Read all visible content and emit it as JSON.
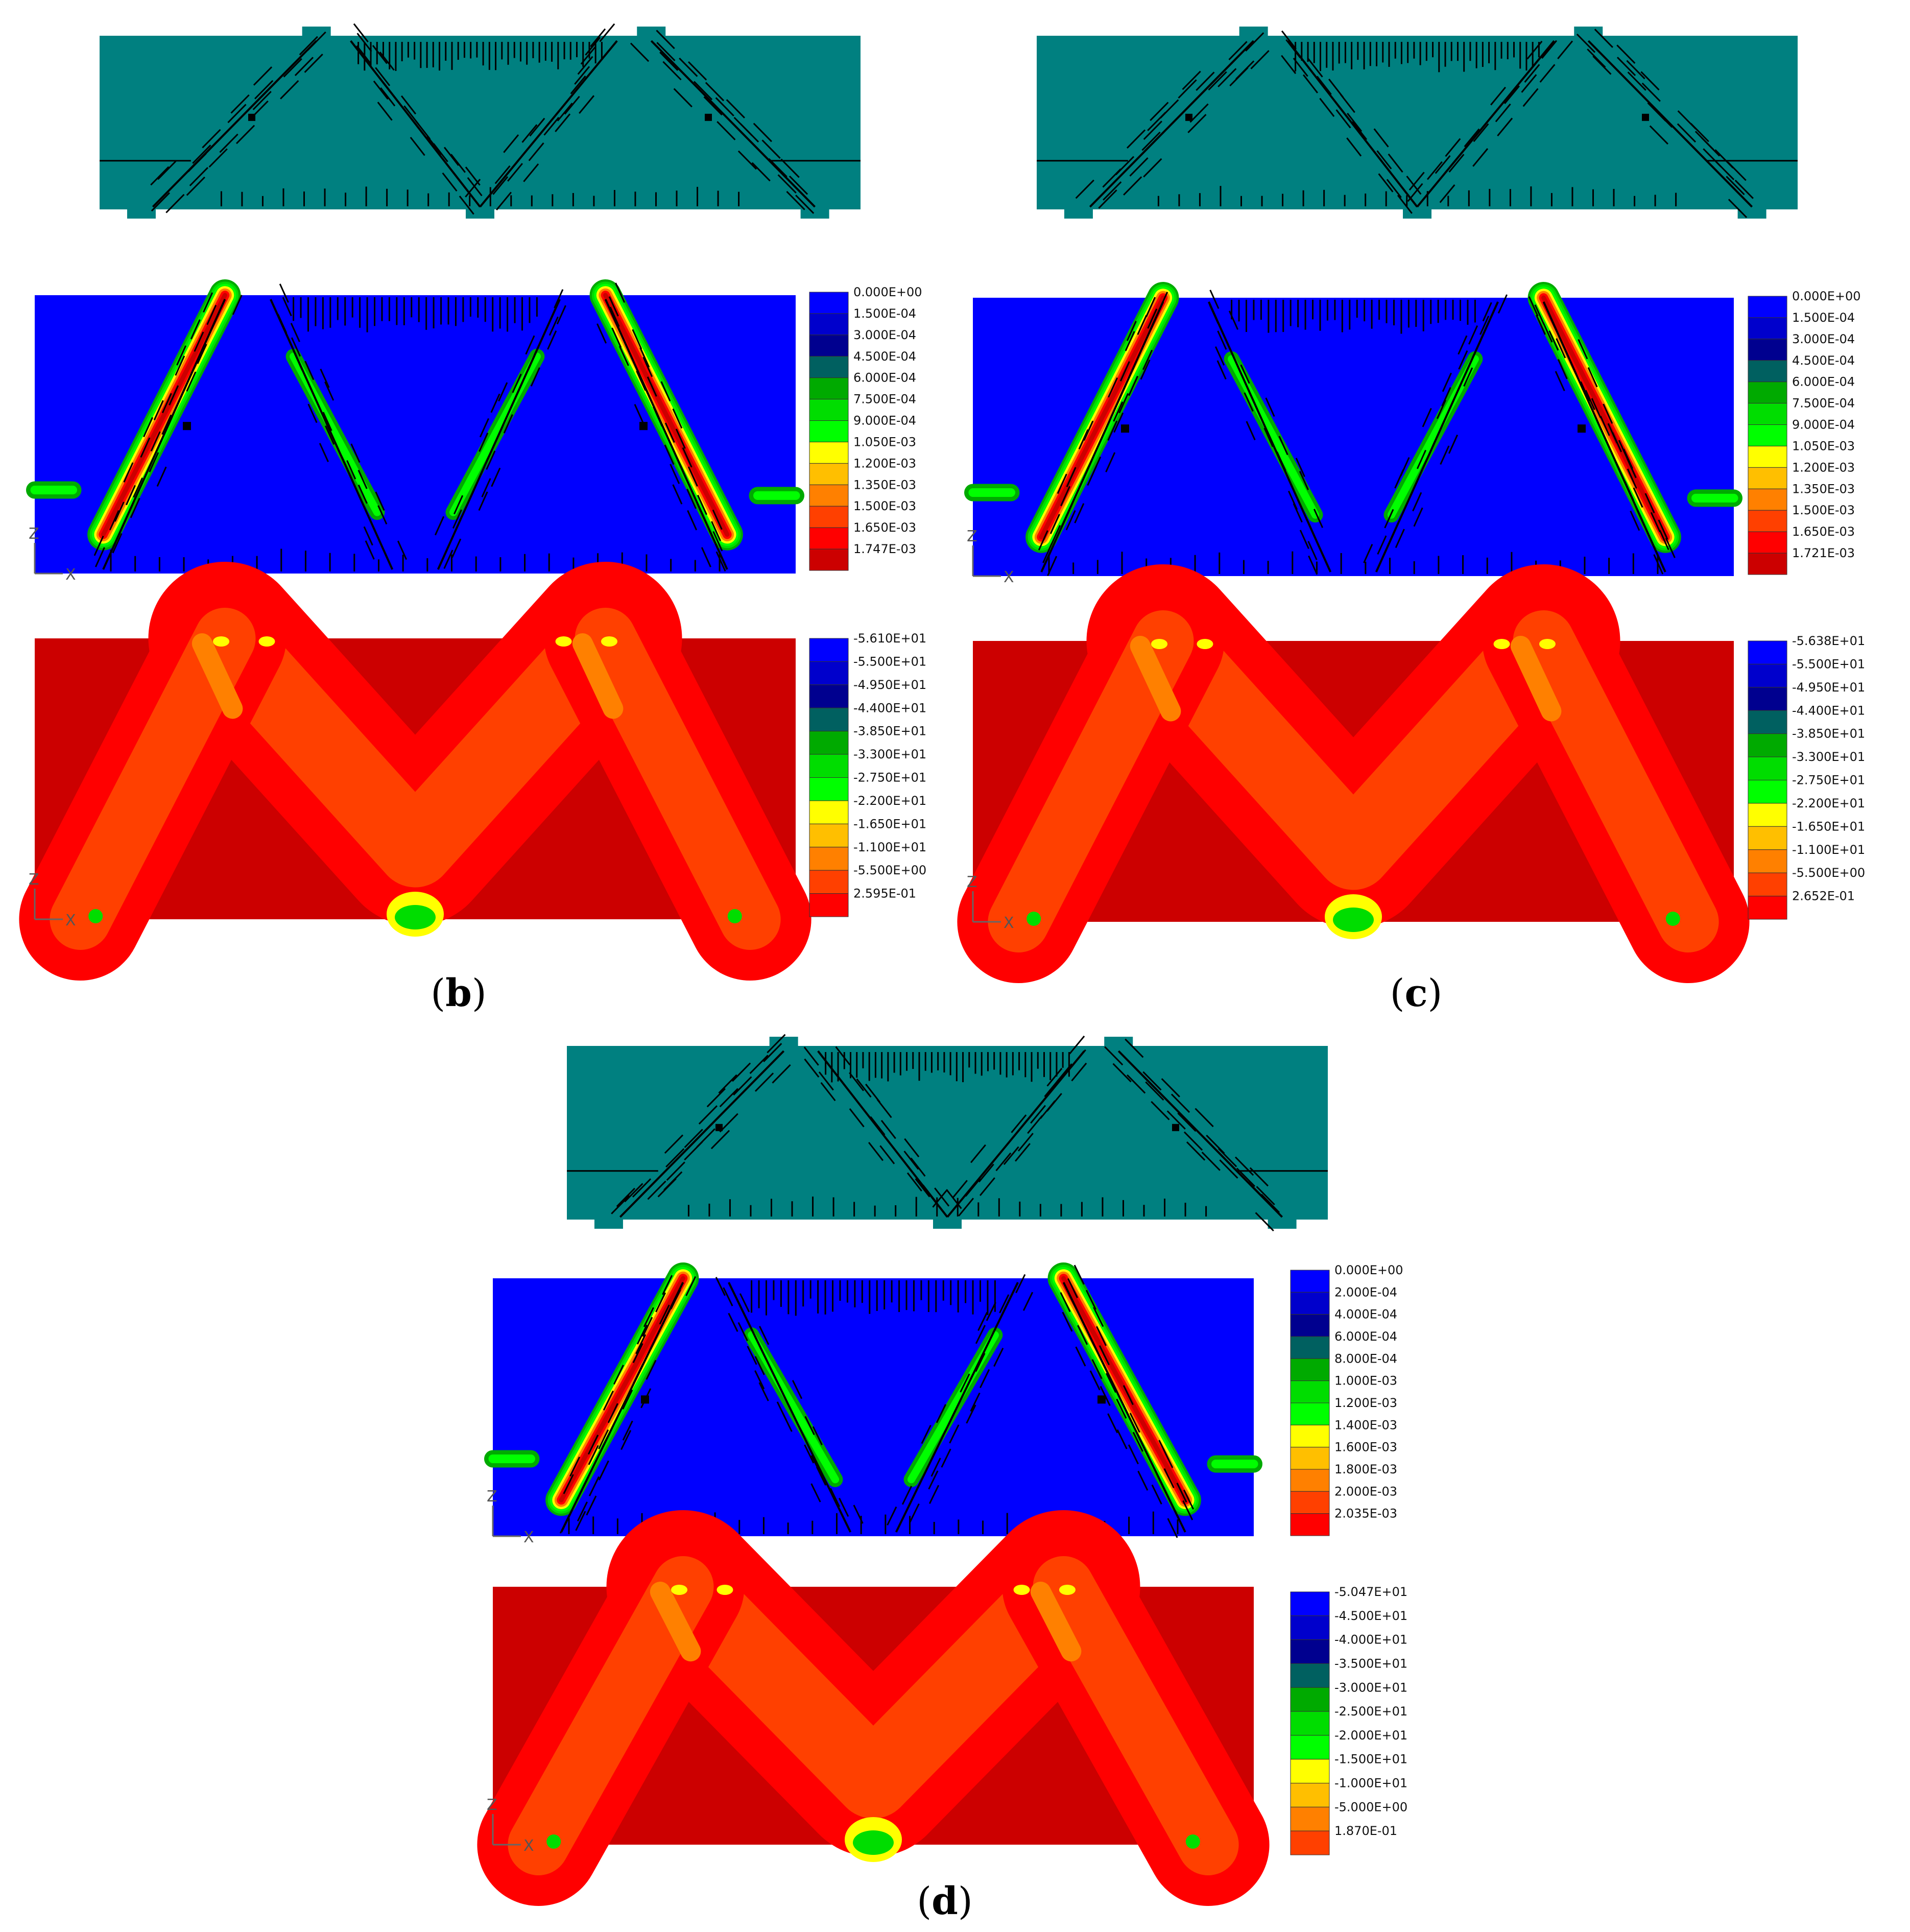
{
  "palette": {
    "teal": "#008080",
    "blue": "#0000ff",
    "darkred": "#cc0000",
    "crack": "#000000",
    "tension_colors": [
      "#0000ff",
      "#0000cc",
      "#00008f",
      "#006060",
      "#00aa00",
      "#00dd00",
      "#00ff00",
      "#ffff00",
      "#ffbf00",
      "#ff8000",
      "#ff4000",
      "#ff0000",
      "#cc0000"
    ],
    "compression_colors": [
      "#0000ff",
      "#0000cc",
      "#00008f",
      "#006060",
      "#00aa00",
      "#00dd00",
      "#00ff00",
      "#ffff00",
      "#ffbf00",
      "#ff8000",
      "#ff4000",
      "#ff0000",
      "#cc0000"
    ]
  },
  "panels": [
    {
      "caption_letter": "b",
      "tension_legend": [
        "0.000E+00",
        "1.500E-04",
        "3.000E-04",
        "4.500E-04",
        "6.000E-04",
        "7.500E-04",
        "9.000E-04",
        "1.050E-03",
        "1.200E-03",
        "1.350E-03",
        "1.500E-03",
        "1.650E-03",
        "1.747E-03"
      ],
      "compression_legend": [
        "-5.610E+01",
        "-5.500E+01",
        "-4.950E+01",
        "-4.400E+01",
        "-3.850E+01",
        "-3.300E+01",
        "-2.750E+01",
        "-2.200E+01",
        "-1.650E+01",
        "-1.100E+01",
        "-5.500E+00",
        "2.595E-01"
      ]
    },
    {
      "caption_letter": "c",
      "tension_legend": [
        "0.000E+00",
        "1.500E-04",
        "3.000E-04",
        "4.500E-04",
        "6.000E-04",
        "7.500E-04",
        "9.000E-04",
        "1.050E-03",
        "1.200E-03",
        "1.350E-03",
        "1.500E-03",
        "1.650E-03",
        "1.721E-03"
      ],
      "compression_legend": [
        "-5.638E+01",
        "-5.500E+01",
        "-4.950E+01",
        "-4.400E+01",
        "-3.850E+01",
        "-3.300E+01",
        "-2.750E+01",
        "-2.200E+01",
        "-1.650E+01",
        "-1.100E+01",
        "-5.500E+00",
        "2.652E-01"
      ]
    },
    {
      "caption_letter": "d",
      "tension_legend": [
        "0.000E+00",
        "2.000E-04",
        "4.000E-04",
        "6.000E-04",
        "8.000E-04",
        "1.000E-03",
        "1.200E-03",
        "1.400E-03",
        "1.600E-03",
        "1.800E-03",
        "2.000E-03",
        "2.035E-03"
      ],
      "compression_legend": [
        "-5.047E+01",
        "-4.500E+01",
        "-4.000E+01",
        "-3.500E+01",
        "-3.000E+01",
        "-2.500E+01",
        "-2.000E+01",
        "-1.500E+01",
        "-1.000E+01",
        "-5.000E+00",
        "1.870E-01"
      ]
    }
  ],
  "axis": {
    "z": "Z",
    "x": "X"
  }
}
